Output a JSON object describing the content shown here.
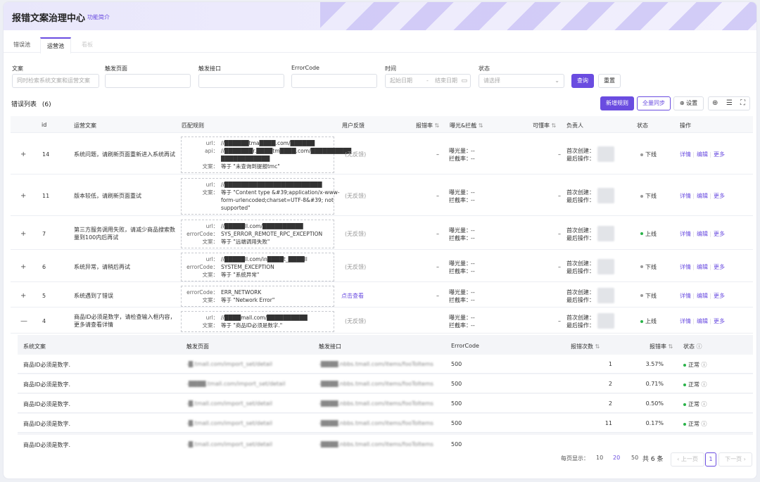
{
  "header": {
    "title": "报错文案治理中心",
    "intro_link": "功能简介"
  },
  "tabs": [
    {
      "label": "错误池"
    },
    {
      "label": "运营池"
    },
    {
      "label": "看板"
    }
  ],
  "filters": {
    "copy": {
      "label": "文案",
      "placeholder": "同时检索系统文案和运营文案"
    },
    "page": {
      "label": "触发页面",
      "placeholder": ""
    },
    "api": {
      "label": "触发接口",
      "placeholder": ""
    },
    "error_code": {
      "label": "ErrorCode",
      "placeholder": ""
    },
    "time": {
      "label": "时间",
      "start_placeholder": "起始日期",
      "separator": "-",
      "end_placeholder": "结束日期"
    },
    "status": {
      "label": "状态",
      "placeholder": "请选择"
    },
    "query_button": "查询",
    "reset_button": "重置"
  },
  "list": {
    "title": "错误列表",
    "count": "(6)",
    "add_rule_button": "新增规则",
    "sync_all_button": "全量同步",
    "settings_button": "设置"
  },
  "columns": {
    "id": "id",
    "op_copy": "运营文案",
    "rule": "匹配规则",
    "feedback": "用户反馈",
    "error_rate": "报错率",
    "exposure": "曝光&拦截",
    "understand_rate": "可懂率",
    "owner": "负责人",
    "status": "状态",
    "ops": "操作"
  },
  "labels": {
    "exposure": "曝光量：",
    "intercept": "拦截率：",
    "first_created": "首次创建：",
    "last_op": "最后操作：",
    "detail": "详情",
    "edit": "编辑",
    "more": "更多",
    "dash": "--",
    "en_dash": "–"
  },
  "rows": [
    {
      "expander": "+",
      "id": "14",
      "copy": "系统问题，请刷新页面重新进入系统再试",
      "rule": [
        {
          "k": "url：",
          "v": "//██████tma████.com/██████"
        },
        {
          "k": "api：",
          "v": "//███████r.████tm████.com/██████████"
        },
        {
          "k": "",
          "v": "████████████"
        },
        {
          "k": "文案：",
          "v": "等于 \"未查询到提报tmc\""
        }
      ],
      "feedback": "(无反馈)",
      "feedback_link": false,
      "error_rate": "–",
      "understand": "–",
      "status": "下线",
      "status_color": "#999999"
    },
    {
      "expander": "+",
      "id": "11",
      "copy": "版本较低，请刷新页面重试",
      "rule": [
        {
          "k": "url：",
          "v": "//████████████████████████"
        },
        {
          "k": "文案：",
          "v": "等于 \"Content type &#39;application/x-www-"
        },
        {
          "k": "",
          "v": "form-urlencoded;charset=UTF-8&#39; not"
        },
        {
          "k": "",
          "v": "supported\""
        }
      ],
      "feedback": "(无反馈)",
      "feedback_link": false,
      "error_rate": "–",
      "understand": "–",
      "status": "下线",
      "status_color": "#999999"
    },
    {
      "expander": "+",
      "id": "7",
      "copy": "第三方服务调用失败，请减少商品搜索数量到100内后再试",
      "rule": [
        {
          "k": "url：",
          "v": "//█████ll.com/██████████"
        },
        {
          "k": "errorCode：",
          "v": "SYS_ERROR_REMOTE_RPC_EXCEPTION"
        },
        {
          "k": "文案：",
          "v": "等于 \"远端调用失败\""
        }
      ],
      "feedback": "(无反馈)",
      "feedback_link": false,
      "error_rate": "–",
      "understand": "–",
      "status": "上线",
      "status_color": "#2bb34a"
    },
    {
      "expander": "+",
      "id": "6",
      "copy": "系统异常，请稍后再试",
      "rule": [
        {
          "k": "url：",
          "v": "//█████ll.com/in████t_████ll"
        },
        {
          "k": "errorCode：",
          "v": "SYSTEM_EXCEPTION"
        },
        {
          "k": "文案：",
          "v": "等于 \"系统异常\""
        }
      ],
      "feedback": "(无反馈)",
      "feedback_link": false,
      "error_rate": "–",
      "understand": "–",
      "status": "下线",
      "status_color": "#999999"
    },
    {
      "expander": "+",
      "id": "5",
      "copy": "系统遇到了错误",
      "rule": [
        {
          "k": "errorCode：",
          "v": "ERR_NETWORK"
        },
        {
          "k": "文案：",
          "v": "等于 \"Network Error\""
        }
      ],
      "feedback": "点击查看",
      "feedback_link": true,
      "error_rate": "–",
      "understand": "",
      "status": "下线",
      "status_color": "#999999"
    },
    {
      "expander": "—",
      "id": "4",
      "copy": "商品ID必须是数字，请检查输入框内容，更多请查看详情",
      "rule": [
        {
          "k": "url：",
          "v": "//████mall.com/██████████"
        },
        {
          "k": "文案：",
          "v": "等于 \"商品ID必须是数字.\""
        }
      ],
      "feedback": "(无反馈)",
      "feedback_link": false,
      "error_rate": "",
      "understand": "–",
      "status": "上线",
      "status_color": "#2bb34a"
    }
  ],
  "sub_columns": {
    "sys_copy": "系统文案",
    "page": "触发页面",
    "api": "触发接口",
    "error_code": "ErrorCode",
    "count": "报错次数",
    "rate": "报错率",
    "status": "状态"
  },
  "sub_rows": [
    {
      "copy": "商品ID必须是数字.",
      "code": "500",
      "count": "1",
      "rate": "3.57%",
      "status": "正常"
    },
    {
      "copy": "商品ID必须是数字.",
      "code": "500",
      "count": "2",
      "rate": "0.71%",
      "status": "正常"
    },
    {
      "copy": "商品ID必须是数字.",
      "code": "500",
      "count": "2",
      "rate": "0.50%",
      "status": "正常"
    },
    {
      "copy": "商品ID必须是数字.",
      "code": "500",
      "count": "11",
      "rate": "0.17%",
      "status": "正常"
    },
    {
      "copy": "商品ID必须是数字.",
      "code": "500",
      "count": "",
      "rate": "",
      "status": ""
    }
  ],
  "sub_page_texts": [
    "-█.tmall.com/import_set/detail",
    "-████.tmall.com/import_set/detail",
    "-█.tmall.com/import_set/detail",
    "-█.tmall.com/import_set/detail",
    "-█.tmall.com/import_set/detail"
  ],
  "sub_api_texts": [
    "-████.nbbs.tmall.com/items/fooToItems",
    "-████.nbbs.tmall.com/items/fooToItems",
    "-████.nbbs.tmall.com/items/fooToItems",
    "-████.nbbs.tmall.com/items/fooToItems",
    "-████.nbbs.tmall.com/items/fooToItems"
  ],
  "pagination": {
    "page_size_label": "每页显示：",
    "sizes": [
      "10",
      "20",
      "50"
    ],
    "total": "共 6 条",
    "prev": "上一页",
    "current": "1",
    "next": "下一页"
  },
  "colors": {
    "accent": "#6a4ce0",
    "online": "#2bb34a",
    "offline": "#999999"
  }
}
